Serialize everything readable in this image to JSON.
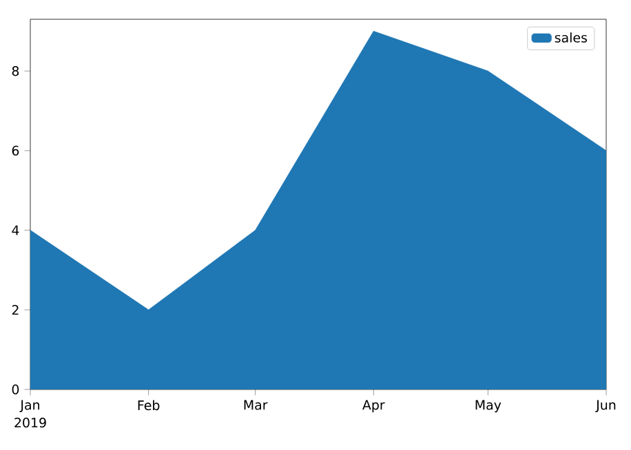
{
  "chart_data": {
    "type": "area",
    "x": [
      "2019-01",
      "2019-02",
      "2019-03",
      "2019-04",
      "2019-05",
      "2019-06"
    ],
    "series": [
      {
        "name": "sales",
        "color": "#1f77b4",
        "values": [
          4,
          2,
          4,
          9,
          8,
          6
        ]
      }
    ],
    "xlim": [
      "2019-01",
      "2019-06"
    ],
    "xticks": [
      {
        "value": "2019-01",
        "label": "Jan"
      },
      {
        "value": "2019-02",
        "label": "Feb"
      },
      {
        "value": "2019-03",
        "label": "Mar"
      },
      {
        "value": "2019-04",
        "label": "Apr"
      },
      {
        "value": "2019-05",
        "label": "May"
      },
      {
        "value": "2019-06",
        "label": "Jun"
      }
    ],
    "ylim": [
      0,
      9.3
    ],
    "yticks": [
      0,
      2,
      4,
      6,
      8
    ],
    "annotations": [
      "2019"
    ],
    "legend": "top right"
  }
}
